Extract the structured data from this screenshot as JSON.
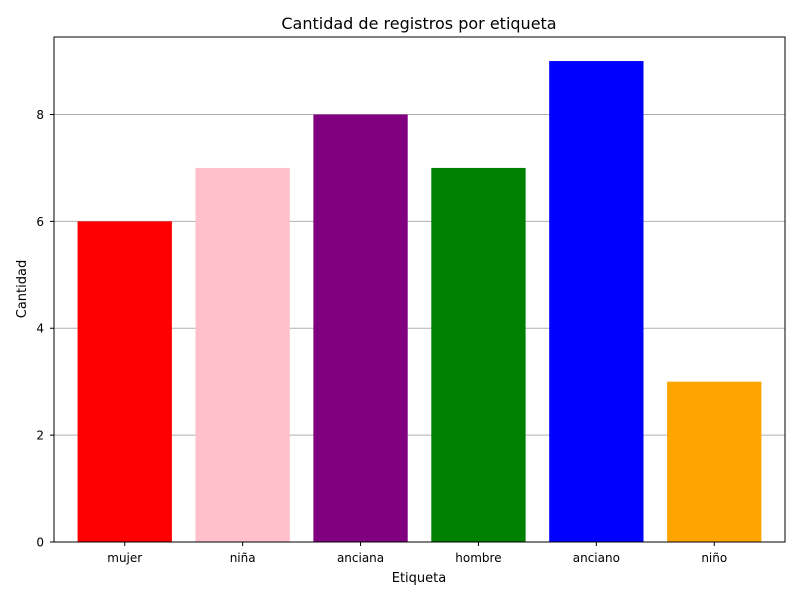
{
  "chart_data": {
    "type": "bar",
    "title": "Cantidad de registros por etiqueta",
    "xlabel": "Etiqueta",
    "ylabel": "Cantidad",
    "categories": [
      "mujer",
      "niña",
      "anciana",
      "hombre",
      "anciano",
      "niño"
    ],
    "values": [
      6,
      7,
      8,
      7,
      9,
      3
    ],
    "colors": [
      "#ff0000",
      "#ffc0cb",
      "#800080",
      "#008000",
      "#0000ff",
      "#ffa500"
    ],
    "ylim": [
      0,
      9.45
    ],
    "yticks": [
      0,
      2,
      4,
      6,
      8
    ],
    "grid": "y",
    "legend": "none"
  }
}
